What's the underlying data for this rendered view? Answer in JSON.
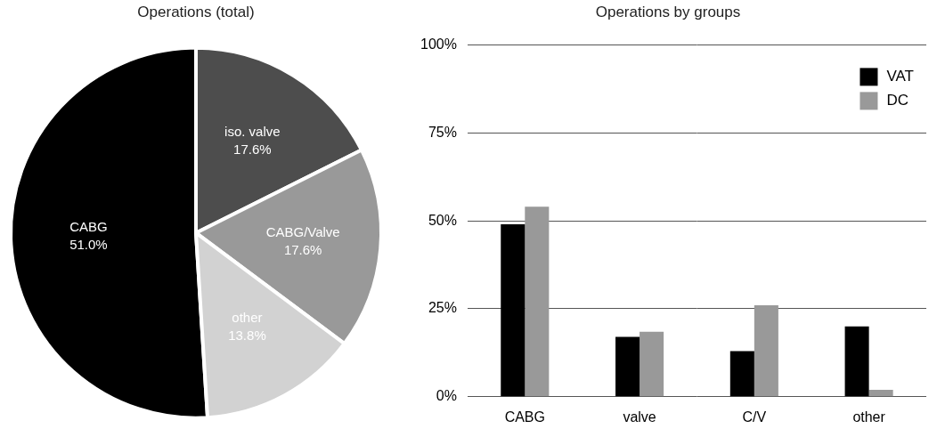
{
  "chart_data": [
    {
      "type": "pie",
      "title": "Operations (total)",
      "categories": [
        "CABG",
        "iso. valve",
        "CABG/Valve",
        "other"
      ],
      "values": [
        51.0,
        17.6,
        17.6,
        13.8
      ],
      "value_labels": [
        "51.0%",
        "17.6%",
        "17.6%",
        "13.8%"
      ],
      "colors": [
        "#000000",
        "#4d4d4d",
        "#999999",
        "#d2d2d2"
      ],
      "data_labels": true
    },
    {
      "type": "bar",
      "title": "Operations by groups",
      "categories": [
        "CABG",
        "valve",
        "C/V",
        "other"
      ],
      "series": [
        {
          "name": "VAT",
          "color": "#000000",
          "values": [
            49,
            17,
            13,
            20
          ]
        },
        {
          "name": "DC",
          "color": "#999999",
          "values": [
            54,
            18.5,
            26,
            2
          ]
        }
      ],
      "ylim": [
        0,
        100
      ],
      "yticks": [
        {
          "value": 0,
          "label": "0%"
        },
        {
          "value": 25,
          "label": "25%"
        },
        {
          "value": 50,
          "label": "50%"
        },
        {
          "value": 75,
          "label": "75%"
        },
        {
          "value": 100,
          "label": "100%"
        }
      ],
      "grid": true,
      "legend": "upper right"
    }
  ]
}
